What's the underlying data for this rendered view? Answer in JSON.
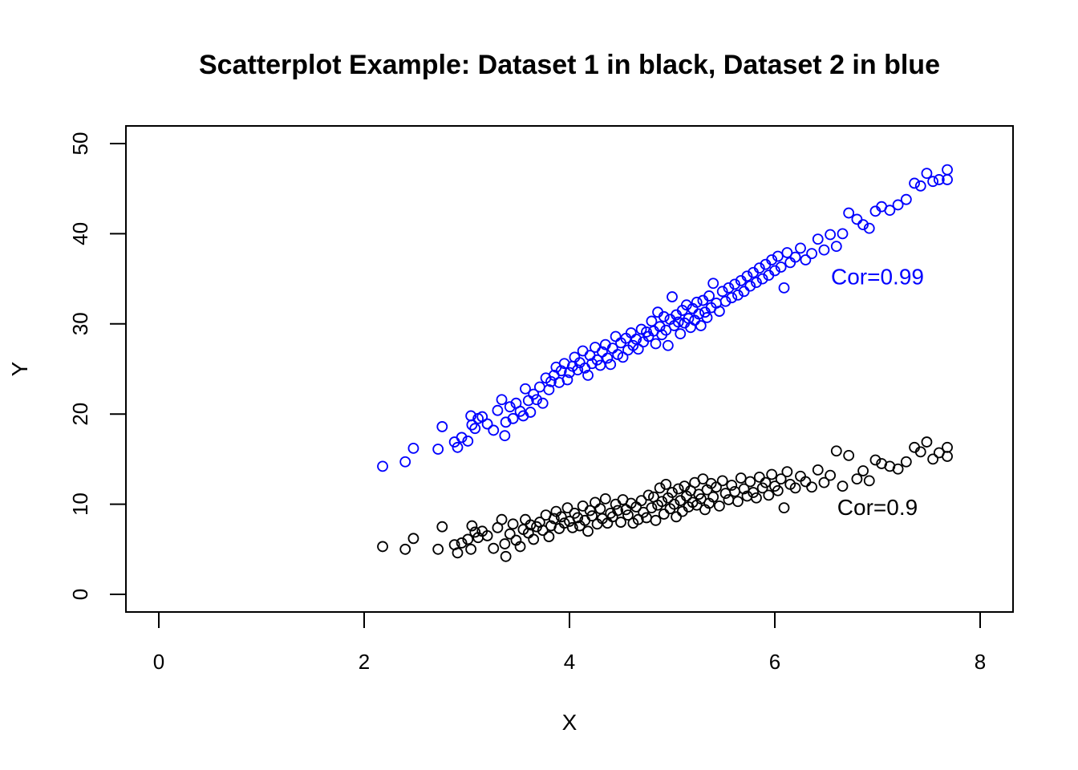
{
  "chart_data": {
    "type": "scatter",
    "title": "Scatterplot Example: Dataset 1 in black, Dataset 2 in blue",
    "xlabel": "X",
    "ylabel": "Y",
    "xlim": [
      0,
      8
    ],
    "ylim": [
      0,
      50
    ],
    "xticks": [
      0,
      2,
      4,
      6,
      8
    ],
    "yticks": [
      0,
      10,
      20,
      30,
      40,
      50
    ],
    "grid": false,
    "colors": {
      "dataset1": "#000000",
      "dataset2": "#0000ff"
    },
    "annotations": [
      {
        "text": "Cor=0.99",
        "x": 7.0,
        "y": 34.4,
        "color": "#0000ff"
      },
      {
        "text": "Cor=0.9",
        "x": 7.0,
        "y": 8.8,
        "color": "#000000"
      }
    ],
    "series": [
      {
        "color": "#000000",
        "points": [
          [
            2.18,
            5.3
          ],
          [
            2.4,
            5.0
          ],
          [
            2.48,
            6.2
          ],
          [
            2.72,
            5.0
          ],
          [
            2.76,
            7.5
          ],
          [
            2.88,
            5.5
          ],
          [
            2.91,
            4.6
          ],
          [
            2.95,
            5.7
          ],
          [
            3.01,
            6.1
          ],
          [
            3.04,
            5.0
          ],
          [
            3.05,
            7.6
          ],
          [
            3.08,
            6.9
          ],
          [
            3.11,
            6.3
          ],
          [
            3.15,
            7.0
          ],
          [
            3.2,
            6.5
          ],
          [
            3.26,
            5.1
          ],
          [
            3.3,
            7.4
          ],
          [
            3.34,
            8.3
          ],
          [
            3.37,
            5.6
          ],
          [
            3.38,
            4.2
          ],
          [
            3.42,
            6.7
          ],
          [
            3.45,
            7.8
          ],
          [
            3.48,
            6.0
          ],
          [
            3.52,
            5.3
          ],
          [
            3.55,
            7.2
          ],
          [
            3.57,
            8.3
          ],
          [
            3.6,
            6.8
          ],
          [
            3.62,
            7.7
          ],
          [
            3.65,
            6.1
          ],
          [
            3.68,
            7.5
          ],
          [
            3.71,
            8.0
          ],
          [
            3.74,
            7.1
          ],
          [
            3.77,
            8.8
          ],
          [
            3.8,
            6.4
          ],
          [
            3.82,
            7.6
          ],
          [
            3.85,
            8.4
          ],
          [
            3.87,
            9.2
          ],
          [
            3.9,
            7.3
          ],
          [
            3.92,
            8.6
          ],
          [
            3.95,
            7.9
          ],
          [
            3.98,
            9.6
          ],
          [
            4.0,
            8.1
          ],
          [
            4.03,
            7.4
          ],
          [
            4.05,
            9.0
          ],
          [
            4.08,
            8.5
          ],
          [
            4.1,
            7.6
          ],
          [
            4.13,
            9.8
          ],
          [
            4.15,
            8.2
          ],
          [
            4.18,
            7.0
          ],
          [
            4.2,
            9.3
          ],
          [
            4.22,
            8.7
          ],
          [
            4.25,
            10.2
          ],
          [
            4.27,
            7.8
          ],
          [
            4.3,
            9.5
          ],
          [
            4.32,
            8.4
          ],
          [
            4.35,
            10.6
          ],
          [
            4.37,
            7.9
          ],
          [
            4.4,
            9.0
          ],
          [
            4.42,
            8.6
          ],
          [
            4.45,
            10.0
          ],
          [
            4.47,
            9.3
          ],
          [
            4.5,
            8.0
          ],
          [
            4.52,
            10.5
          ],
          [
            4.55,
            9.4
          ],
          [
            4.57,
            8.8
          ],
          [
            4.6,
            10.1
          ],
          [
            4.62,
            7.9
          ],
          [
            4.65,
            9.7
          ],
          [
            4.67,
            8.3
          ],
          [
            4.7,
            10.4
          ],
          [
            4.72,
            9.1
          ],
          [
            4.75,
            8.5
          ],
          [
            4.77,
            11.0
          ],
          [
            4.8,
            9.6
          ],
          [
            4.82,
            10.8
          ],
          [
            4.84,
            8.2
          ],
          [
            4.86,
            9.9
          ],
          [
            4.88,
            11.8
          ],
          [
            4.9,
            10.3
          ],
          [
            4.92,
            8.9
          ],
          [
            4.94,
            12.2
          ],
          [
            4.96,
            10.7
          ],
          [
            4.98,
            9.5
          ],
          [
            5.0,
            11.3
          ],
          [
            5.02,
            10.0
          ],
          [
            5.04,
            8.6
          ],
          [
            5.06,
            11.7
          ],
          [
            5.08,
            10.4
          ],
          [
            5.1,
            9.2
          ],
          [
            5.12,
            12.0
          ],
          [
            5.14,
            10.9
          ],
          [
            5.16,
            9.7
          ],
          [
            5.18,
            11.5
          ],
          [
            5.2,
            10.2
          ],
          [
            5.22,
            12.4
          ],
          [
            5.24,
            9.9
          ],
          [
            5.26,
            11.1
          ],
          [
            5.28,
            10.6
          ],
          [
            5.3,
            12.8
          ],
          [
            5.32,
            9.4
          ],
          [
            5.34,
            11.6
          ],
          [
            5.36,
            10.1
          ],
          [
            5.38,
            12.3
          ],
          [
            5.4,
            10.8
          ],
          [
            5.43,
            11.9
          ],
          [
            5.46,
            9.8
          ],
          [
            5.49,
            12.6
          ],
          [
            5.52,
            11.2
          ],
          [
            5.55,
            10.5
          ],
          [
            5.58,
            12.1
          ],
          [
            5.61,
            11.4
          ],
          [
            5.64,
            10.3
          ],
          [
            5.67,
            12.9
          ],
          [
            5.7,
            11.7
          ],
          [
            5.73,
            10.9
          ],
          [
            5.76,
            12.5
          ],
          [
            5.79,
            11.3
          ],
          [
            5.82,
            10.7
          ],
          [
            5.85,
            13.0
          ],
          [
            5.88,
            11.8
          ],
          [
            5.91,
            12.4
          ],
          [
            5.94,
            11.0
          ],
          [
            5.97,
            13.3
          ],
          [
            6.0,
            12.0
          ],
          [
            6.03,
            11.5
          ],
          [
            6.06,
            12.8
          ],
          [
            6.09,
            9.6
          ],
          [
            6.12,
            13.6
          ],
          [
            6.15,
            12.2
          ],
          [
            6.2,
            11.8
          ],
          [
            6.25,
            13.1
          ],
          [
            6.3,
            12.5
          ],
          [
            6.36,
            11.9
          ],
          [
            6.42,
            13.8
          ],
          [
            6.48,
            12.4
          ],
          [
            6.54,
            13.2
          ],
          [
            6.6,
            15.9
          ],
          [
            6.66,
            12.0
          ],
          [
            6.72,
            15.4
          ],
          [
            6.8,
            12.8
          ],
          [
            6.86,
            13.7
          ],
          [
            6.92,
            12.6
          ],
          [
            6.98,
            14.9
          ],
          [
            7.04,
            14.5
          ],
          [
            7.12,
            14.2
          ],
          [
            7.2,
            13.9
          ],
          [
            7.28,
            14.7
          ],
          [
            7.36,
            16.3
          ],
          [
            7.42,
            15.8
          ],
          [
            7.48,
            16.9
          ],
          [
            7.54,
            15.0
          ],
          [
            7.6,
            15.7
          ],
          [
            7.68,
            16.3
          ],
          [
            7.68,
            15.3
          ]
        ]
      },
      {
        "color": "#0000ff",
        "points": [
          [
            2.18,
            14.2
          ],
          [
            2.4,
            14.7
          ],
          [
            2.48,
            16.2
          ],
          [
            2.72,
            16.1
          ],
          [
            2.76,
            18.6
          ],
          [
            2.88,
            16.9
          ],
          [
            2.91,
            16.3
          ],
          [
            2.95,
            17.4
          ],
          [
            3.01,
            17.0
          ],
          [
            3.04,
            19.8
          ],
          [
            3.05,
            18.8
          ],
          [
            3.08,
            18.4
          ],
          [
            3.11,
            19.5
          ],
          [
            3.15,
            19.7
          ],
          [
            3.2,
            18.9
          ],
          [
            3.26,
            18.2
          ],
          [
            3.3,
            20.4
          ],
          [
            3.34,
            21.6
          ],
          [
            3.37,
            17.6
          ],
          [
            3.38,
            19.1
          ],
          [
            3.42,
            20.8
          ],
          [
            3.45,
            19.5
          ],
          [
            3.48,
            21.2
          ],
          [
            3.52,
            20.3
          ],
          [
            3.55,
            19.8
          ],
          [
            3.57,
            22.8
          ],
          [
            3.6,
            21.5
          ],
          [
            3.62,
            20.2
          ],
          [
            3.65,
            22.2
          ],
          [
            3.68,
            21.6
          ],
          [
            3.71,
            23.0
          ],
          [
            3.74,
            21.2
          ],
          [
            3.77,
            24.0
          ],
          [
            3.8,
            22.7
          ],
          [
            3.82,
            23.6
          ],
          [
            3.85,
            24.3
          ],
          [
            3.87,
            25.2
          ],
          [
            3.9,
            23.5
          ],
          [
            3.92,
            24.8
          ],
          [
            3.95,
            25.6
          ],
          [
            3.98,
            23.8
          ],
          [
            4.0,
            24.6
          ],
          [
            4.03,
            25.3
          ],
          [
            4.05,
            26.3
          ],
          [
            4.08,
            24.9
          ],
          [
            4.1,
            25.7
          ],
          [
            4.13,
            27.0
          ],
          [
            4.15,
            25.1
          ],
          [
            4.18,
            24.3
          ],
          [
            4.2,
            26.5
          ],
          [
            4.22,
            25.6
          ],
          [
            4.25,
            27.4
          ],
          [
            4.27,
            26.0
          ],
          [
            4.3,
            25.4
          ],
          [
            4.32,
            26.9
          ],
          [
            4.35,
            27.7
          ],
          [
            4.37,
            26.2
          ],
          [
            4.4,
            25.5
          ],
          [
            4.42,
            27.3
          ],
          [
            4.45,
            28.6
          ],
          [
            4.47,
            26.6
          ],
          [
            4.5,
            27.9
          ],
          [
            4.52,
            26.3
          ],
          [
            4.55,
            28.4
          ],
          [
            4.57,
            27.1
          ],
          [
            4.6,
            29.0
          ],
          [
            4.62,
            27.6
          ],
          [
            4.65,
            28.3
          ],
          [
            4.67,
            27.2
          ],
          [
            4.7,
            29.4
          ],
          [
            4.72,
            28.0
          ],
          [
            4.75,
            29.1
          ],
          [
            4.77,
            28.6
          ],
          [
            4.8,
            30.3
          ],
          [
            4.82,
            29.2
          ],
          [
            4.84,
            27.8
          ],
          [
            4.86,
            31.3
          ],
          [
            4.88,
            29.7
          ],
          [
            4.9,
            28.8
          ],
          [
            4.92,
            30.8
          ],
          [
            4.94,
            29.3
          ],
          [
            4.96,
            27.6
          ],
          [
            4.98,
            30.5
          ],
          [
            5.0,
            33.0
          ],
          [
            5.02,
            29.8
          ],
          [
            5.04,
            31.0
          ],
          [
            5.06,
            30.2
          ],
          [
            5.08,
            28.9
          ],
          [
            5.1,
            31.5
          ],
          [
            5.12,
            30.1
          ],
          [
            5.14,
            32.1
          ],
          [
            5.16,
            30.6
          ],
          [
            5.18,
            29.6
          ],
          [
            5.2,
            31.7
          ],
          [
            5.22,
            30.4
          ],
          [
            5.24,
            32.4
          ],
          [
            5.26,
            31.1
          ],
          [
            5.28,
            29.8
          ],
          [
            5.3,
            32.6
          ],
          [
            5.32,
            31.3
          ],
          [
            5.34,
            30.7
          ],
          [
            5.36,
            33.1
          ],
          [
            5.38,
            31.8
          ],
          [
            5.4,
            34.5
          ],
          [
            5.43,
            32.3
          ],
          [
            5.46,
            31.4
          ],
          [
            5.49,
            33.6
          ],
          [
            5.52,
            32.5
          ],
          [
            5.55,
            34.0
          ],
          [
            5.58,
            32.9
          ],
          [
            5.61,
            34.4
          ],
          [
            5.64,
            33.2
          ],
          [
            5.67,
            34.8
          ],
          [
            5.7,
            33.6
          ],
          [
            5.73,
            35.3
          ],
          [
            5.76,
            34.2
          ],
          [
            5.79,
            35.7
          ],
          [
            5.82,
            34.6
          ],
          [
            5.85,
            36.2
          ],
          [
            5.88,
            35.0
          ],
          [
            5.91,
            36.6
          ],
          [
            5.94,
            35.4
          ],
          [
            5.97,
            37.1
          ],
          [
            6.0,
            35.9
          ],
          [
            6.03,
            37.5
          ],
          [
            6.06,
            36.3
          ],
          [
            6.09,
            34.0
          ],
          [
            6.12,
            37.9
          ],
          [
            6.15,
            36.8
          ],
          [
            6.2,
            37.4
          ],
          [
            6.25,
            38.4
          ],
          [
            6.3,
            37.1
          ],
          [
            6.36,
            37.8
          ],
          [
            6.42,
            39.4
          ],
          [
            6.48,
            38.2
          ],
          [
            6.54,
            39.9
          ],
          [
            6.6,
            38.6
          ],
          [
            6.66,
            40.0
          ],
          [
            6.72,
            42.3
          ],
          [
            6.8,
            41.6
          ],
          [
            6.86,
            41.0
          ],
          [
            6.92,
            40.6
          ],
          [
            6.98,
            42.5
          ],
          [
            7.04,
            43.0
          ],
          [
            7.12,
            42.6
          ],
          [
            7.2,
            43.2
          ],
          [
            7.28,
            43.8
          ],
          [
            7.36,
            45.6
          ],
          [
            7.42,
            45.3
          ],
          [
            7.48,
            46.7
          ],
          [
            7.54,
            45.8
          ],
          [
            7.6,
            46.0
          ],
          [
            7.68,
            47.1
          ],
          [
            7.68,
            46.0
          ]
        ]
      }
    ]
  }
}
